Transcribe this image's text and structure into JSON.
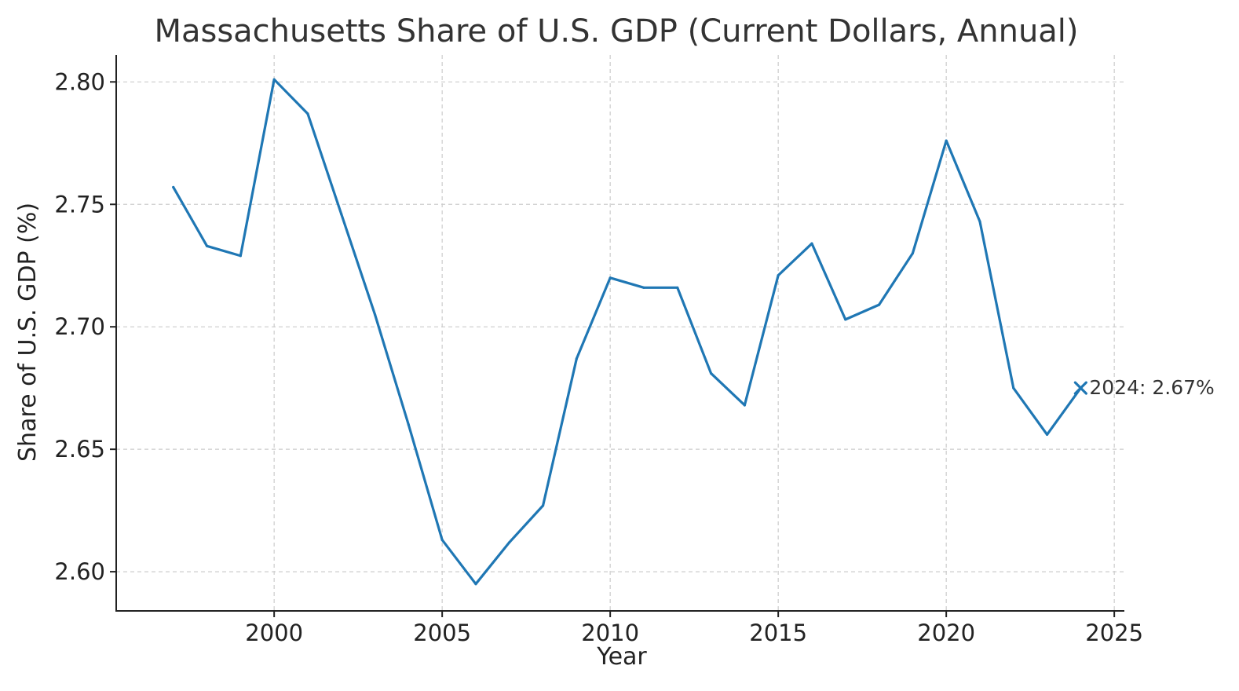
{
  "chart_data": {
    "type": "line",
    "title": "Massachusetts Share of U.S. GDP (Current Dollars, Annual)",
    "xlabel": "Year",
    "ylabel": "Share of U.S. GDP (%)",
    "xlim": [
      1995.3,
      2025.3
    ],
    "ylim": [
      2.584,
      2.811
    ],
    "x_ticks": [
      2000,
      2005,
      2010,
      2015,
      2020,
      2025
    ],
    "y_ticks": [
      2.6,
      2.65,
      2.7,
      2.75,
      2.8
    ],
    "y_tick_labels": [
      "2.60",
      "2.65",
      "2.70",
      "2.75",
      "2.80"
    ],
    "grid": true,
    "series": [
      {
        "color": "#1f77b4",
        "x": [
          1997,
          1998,
          1999,
          2000,
          2001,
          2002,
          2003,
          2004,
          2005,
          2006,
          2007,
          2008,
          2009,
          2010,
          2011,
          2012,
          2013,
          2014,
          2015,
          2016,
          2017,
          2018,
          2019,
          2020,
          2021,
          2022,
          2023,
          2024
        ],
        "y": [
          2.757,
          2.733,
          2.729,
          2.801,
          2.787,
          2.746,
          2.705,
          2.66,
          2.613,
          2.595,
          2.612,
          2.627,
          2.687,
          2.72,
          2.716,
          2.716,
          2.681,
          2.668,
          2.721,
          2.734,
          2.703,
          2.709,
          2.73,
          2.776,
          2.743,
          2.675,
          2.656,
          2.675
        ]
      }
    ],
    "annotations": [
      {
        "x": 2024,
        "y": 2.675,
        "marker": "x",
        "text": "2024: 2.67%"
      }
    ]
  }
}
